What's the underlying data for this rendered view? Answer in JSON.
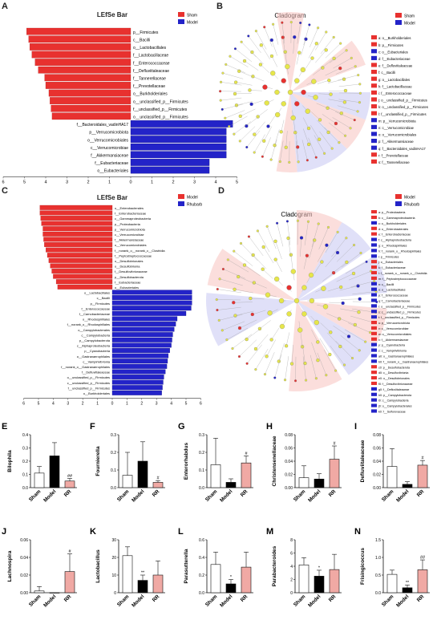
{
  "panels": {
    "A": {
      "letter": "A",
      "title": "LEfSe Bar",
      "legend": [
        {
          "label": "Sham",
          "color": "#e8312f"
        },
        {
          "label": "Model",
          "color": "#2323c8"
        }
      ],
      "red_bars": [
        {
          "label": "p__Firmicutes",
          "value": 4.9
        },
        {
          "label": "c__Bacilli",
          "value": 4.8
        },
        {
          "label": "o__Lactobacillales",
          "value": 4.75
        },
        {
          "label": "f__Lactobacillaceae",
          "value": 4.65
        },
        {
          "label": "f__Enterococcaceae",
          "value": 4.5
        },
        {
          "label": "f__Defluviitaleaceae",
          "value": 4.35
        },
        {
          "label": "f__Tannerellaceae",
          "value": 4.05
        },
        {
          "label": "f__Prevotellaceae",
          "value": 4.0
        },
        {
          "label": "o__Burkholderiales",
          "value": 3.85
        },
        {
          "label": "o__unclassified_p__Firmicutes",
          "value": 3.8
        },
        {
          "label": "f__unclassified_p__Firmicutes",
          "value": 3.75
        },
        {
          "label": "o__unclassified_p__Firmicutes",
          "value": 3.7
        }
      ],
      "blue_bars": [
        {
          "label": "f__Bacteroidales_vadinHA17",
          "value": 4.8
        },
        {
          "label": "p__Verrucomicrobiota",
          "value": 4.5
        },
        {
          "label": "o__Verrucomicrobiales",
          "value": 4.5
        },
        {
          "label": "c__Verrucomicrobiae",
          "value": 4.5
        },
        {
          "label": "f__Akkermansiaceae",
          "value": 4.5
        },
        {
          "label": "f__Eubacteriaceae",
          "value": 3.7
        },
        {
          "label": "o__Eubacteriales",
          "value": 3.7
        }
      ],
      "axis_ticks": [
        "6",
        "5",
        "4",
        "3",
        "2",
        "1",
        "0",
        "1",
        "2",
        "3",
        "4",
        "5"
      ]
    },
    "B": {
      "letter": "B",
      "title": "Cladogram",
      "legend": [
        {
          "label": "Sham",
          "color": "#e8312f"
        },
        {
          "label": "Model",
          "color": "#2323c8"
        }
      ],
      "items": [
        {
          "text": "a: o__Burkholderiales",
          "color": "#e8312f"
        },
        {
          "text": "b: p__Firmicutes",
          "color": "#e8312f"
        },
        {
          "text": "c: o__Eubacteriales",
          "color": "#2323c8"
        },
        {
          "text": "d: f__Eubacteriaceae",
          "color": "#2323c8"
        },
        {
          "text": "e: f__Defluviitaleaceae",
          "color": "#e8312f"
        },
        {
          "text": "f: c__Bacilli",
          "color": "#e8312f"
        },
        {
          "text": "g: o__Lactobacillales",
          "color": "#e8312f"
        },
        {
          "text": "h: f__Lactobacillaceae",
          "color": "#e8312f"
        },
        {
          "text": "i: f__Enterococcaceae",
          "color": "#e8312f"
        },
        {
          "text": "j: o__unclassified_p__Firmicutes",
          "color": "#e8312f"
        },
        {
          "text": "k: o__unclassified_p__Firmicutes",
          "color": "#e8312f"
        },
        {
          "text": "l: f__unclassified_p__Firmicutes",
          "color": "#e8312f"
        },
        {
          "text": "m: p__Verrucomicrobiota",
          "color": "#2323c8"
        },
        {
          "text": "n: c__Verrucomicrobiae",
          "color": "#2323c8"
        },
        {
          "text": "o: o__Verrucomicrobiales",
          "color": "#2323c8"
        },
        {
          "text": "p: f__Akkermansiaceae",
          "color": "#2323c8"
        },
        {
          "text": "q: f__Bacteroidales_vadinHA17",
          "color": "#2323c8"
        },
        {
          "text": "r: f__Prevotellaceae",
          "color": "#e8312f"
        },
        {
          "text": "s: f__Tannerellaceae",
          "color": "#e8312f"
        }
      ]
    },
    "C": {
      "letter": "C",
      "title": "LEfSe Bar",
      "legend": [
        {
          "label": "Model",
          "color": "#e8312f"
        },
        {
          "label": "Rhubarb",
          "color": "#2323c8"
        }
      ],
      "red_bars": [
        {
          "label": "o__Enterobacterales",
          "value": 4.9
        },
        {
          "label": "f__Enterobacteriaceae",
          "value": 4.9
        },
        {
          "label": "c__Gammaproteobacteria",
          "value": 4.85
        },
        {
          "label": "p__Proteobacteria",
          "value": 4.8
        },
        {
          "label": "p__Verrucomicrobiota",
          "value": 4.7
        },
        {
          "label": "c__Verrucomicrobiae",
          "value": 4.7
        },
        {
          "label": "f__Akkermansiaceae",
          "value": 4.65
        },
        {
          "label": "o__Verrucomicrobiales",
          "value": 4.6
        },
        {
          "label": "f__norank_o__norank_c__Clostridia",
          "value": 4.5
        },
        {
          "label": "f__Peptostreptococcaceae",
          "value": 4.4
        },
        {
          "label": "o__Desulfobrionales",
          "value": 4.3
        },
        {
          "label": "o__Desulfobrionia",
          "value": 4.2
        },
        {
          "label": "f__Desulfovibrionaceae",
          "value": 4.1
        },
        {
          "label": "p__Desulfobacterota",
          "value": 4.0
        },
        {
          "label": "f__Eubacteriaceae",
          "value": 3.8
        },
        {
          "label": "o__Eubacteriales",
          "value": 3.7
        }
      ],
      "blue_bars": [
        {
          "label": "o__Lactobacillales",
          "value": 5.4
        },
        {
          "label": "c__Bacilli",
          "value": 5.4
        },
        {
          "label": "p__Firmicutes",
          "value": 5.4
        },
        {
          "label": "f__Enterococcaceae",
          "value": 5.35
        },
        {
          "label": "f__Carnobacteriaceae",
          "value": 5.0
        },
        {
          "label": "o__Rhodospirillales",
          "value": 4.4
        },
        {
          "label": "f__norank_o__Rhodospirillales",
          "value": 4.3
        },
        {
          "label": "o__Campylobacterales",
          "value": 4.2
        },
        {
          "label": "c__Campylobacteria",
          "value": 4.1
        },
        {
          "label": "p__Campylobacterota",
          "value": 4.05
        },
        {
          "label": "c__Alphaproteobacteria",
          "value": 4.0
        },
        {
          "label": "p__Cyanobacteria",
          "value": 3.9
        },
        {
          "label": "o__Gastranaerophilales",
          "value": 3.8
        },
        {
          "label": "c__Vampirivibrionia",
          "value": 3.75
        },
        {
          "label": "f__norank_o__Gastranaerophilales",
          "value": 3.7
        },
        {
          "label": "f__Defluviitaleaceae",
          "value": 3.6
        },
        {
          "label": "o__unclassified_p__Firmicutes",
          "value": 3.5
        },
        {
          "label": "c__unclassified_p__Firmicutes",
          "value": 3.45
        },
        {
          "label": "f__unclassified_p__Firmicutes",
          "value": 3.4
        },
        {
          "label": "o__Burkholderiales",
          "value": 3.35
        }
      ],
      "axis_ticks": [
        "6",
        "5",
        "4",
        "3",
        "2",
        "1",
        "0",
        "1",
        "2",
        "3",
        "4",
        "5",
        "6"
      ]
    },
    "D": {
      "letter": "D",
      "title": "Cladogram",
      "legend": [
        {
          "label": "Model",
          "color": "#e8312f"
        },
        {
          "label": "Rhubarb",
          "color": "#2323c8"
        }
      ],
      "items": [
        {
          "text": "a: p__Proteobacteria",
          "color": "#e8312f"
        },
        {
          "text": "b: c__Gammaproteobacteria",
          "color": "#e8312f"
        },
        {
          "text": "c: o__Burkholderiales",
          "color": "#2323c8"
        },
        {
          "text": "d: o__Enterobacterales",
          "color": "#e8312f"
        },
        {
          "text": "e: f__Enterobacteriaceae",
          "color": "#e8312f"
        },
        {
          "text": "f: c__Alphaproteobacteria",
          "color": "#2323c8"
        },
        {
          "text": "g: o__Rhodospirillales",
          "color": "#2323c8"
        },
        {
          "text": "h: f__norank_o__Rhodospirillales",
          "color": "#2323c8"
        },
        {
          "text": "i: p__Firmicutes",
          "color": "#2323c8"
        },
        {
          "text": "j: o__Eubacteriales",
          "color": "#e8312f"
        },
        {
          "text": "k: f__Eubacteriaceae",
          "color": "#e8312f"
        },
        {
          "text": "l: f__norank_o__norank_c__Clostridia",
          "color": "#e8312f"
        },
        {
          "text": "m: f__Peptostreptococcaceae",
          "color": "#e8312f"
        },
        {
          "text": "n: c__Bacilli",
          "color": "#2323c8"
        },
        {
          "text": "o: o__Lactobacillales",
          "color": "#2323c8"
        },
        {
          "text": "p: f__Enterococcaceae",
          "color": "#2323c8"
        },
        {
          "text": "q: f__Carnobacteriaceae",
          "color": "#2323c8"
        },
        {
          "text": "r: o__unclassified_p__Firmicutes",
          "color": "#2323c8"
        },
        {
          "text": "s: c__unclassified_p__Firmicutes",
          "color": "#2323c8"
        },
        {
          "text": "t: f__unclassified_p__Firmicutes",
          "color": "#2323c8"
        },
        {
          "text": "u: p__Verrucomicrobiota",
          "color": "#e8312f"
        },
        {
          "text": "v: c__Verrucomicrobiae",
          "color": "#e8312f"
        },
        {
          "text": "w: o__Verrucomicrobiales",
          "color": "#e8312f"
        },
        {
          "text": "x: f__Akkermansiaceae",
          "color": "#e8312f"
        },
        {
          "text": "y: p__Cyanobacteria",
          "color": "#2323c8"
        },
        {
          "text": "z: c__Vampirivibrionia",
          "color": "#2323c8"
        },
        {
          "text": "a0: o__Gastranaerophilales",
          "color": "#2323c8"
        },
        {
          "text": "b0: f__norank_o__Gastranaerophilales",
          "color": "#2323c8"
        },
        {
          "text": "c0: p__Desulfobacterota",
          "color": "#e8312f"
        },
        {
          "text": "d0: c__Desulfovibrionia",
          "color": "#e8312f"
        },
        {
          "text": "e0: o__Desulfobrionales",
          "color": "#e8312f"
        },
        {
          "text": "f0: f__Desulfovibrionaceae",
          "color": "#e8312f"
        },
        {
          "text": "g0: f__Defluviitaleaceae",
          "color": "#2323c8"
        },
        {
          "text": "h0: p__Campylobacterota",
          "color": "#2323c8"
        },
        {
          "text": "i0: c__Campylobacteria",
          "color": "#2323c8"
        },
        {
          "text": "j0: o__Campylobacterales",
          "color": "#2323c8"
        },
        {
          "text": "k0: f__Sulfurovaceae",
          "color": "#2323c8"
        }
      ]
    }
  },
  "bar_panels": [
    {
      "letter": "E",
      "ylabel": "Bilophila",
      "yticks": [
        "0.0",
        "0.1",
        "0.2",
        "0.3",
        "0.4"
      ],
      "ymax": 0.4,
      "values": [
        0.11,
        0.24,
        0.05
      ],
      "errors": [
        0.05,
        0.1,
        0.02
      ],
      "sig": [
        "",
        "",
        "##"
      ]
    },
    {
      "letter": "F",
      "ylabel": "Fournierella",
      "yticks": [
        "0.0",
        "0.1",
        "0.2",
        "0.3"
      ],
      "ymax": 0.3,
      "values": [
        0.07,
        0.15,
        0.03
      ],
      "errors": [
        0.13,
        0.11,
        0.01
      ],
      "sig": [
        "",
        "",
        "#"
      ]
    },
    {
      "letter": "G",
      "ylabel": "Enterorhabdus",
      "yticks": [
        "0.0",
        "0.1",
        "0.2",
        "0.3"
      ],
      "ymax": 0.3,
      "values": [
        0.13,
        0.03,
        0.14
      ],
      "errors": [
        0.15,
        0.02,
        0.04
      ],
      "sig": [
        "",
        "",
        "#"
      ]
    },
    {
      "letter": "H",
      "ylabel": "Christensenellaceae",
      "yticks": [
        "0.00",
        "0.02",
        "0.04",
        "0.06",
        "0.08"
      ],
      "ymax": 0.08,
      "values": [
        0.015,
        0.013,
        0.043
      ],
      "errors": [
        0.018,
        0.008,
        0.02
      ],
      "sig": [
        "",
        "",
        "#"
      ]
    },
    {
      "letter": "I",
      "ylabel": "Defluviitaleaceae",
      "yticks": [
        "0.00",
        "0.02",
        "0.04",
        "0.06",
        "0.08"
      ],
      "ymax": 0.08,
      "values": [
        0.032,
        0.005,
        0.034
      ],
      "errors": [
        0.027,
        0.004,
        0.007
      ],
      "sig": [
        "",
        "",
        "#"
      ]
    },
    {
      "letter": "J",
      "ylabel": "Lachnospira",
      "yticks": [
        "0.00",
        "0.02",
        "0.04",
        "0.06"
      ],
      "ymax": 0.06,
      "values": [
        0.002,
        0.0,
        0.024
      ],
      "errors": [
        0.005,
        0.0,
        0.02
      ],
      "sig": [
        "",
        "",
        "#"
      ]
    },
    {
      "letter": "K",
      "ylabel": "Lactobacillus",
      "yticks": [
        "0",
        "10",
        "20",
        "30"
      ],
      "ymax": 30,
      "values": [
        21,
        7,
        10
      ],
      "errors": [
        5,
        3,
        8
      ],
      "sig": [
        "",
        "**",
        ""
      ]
    },
    {
      "letter": "L",
      "ylabel": "Parasutterella",
      "yticks": [
        "0.0",
        "0.2",
        "0.4",
        "0.6"
      ],
      "ymax": 0.6,
      "values": [
        0.32,
        0.1,
        0.29
      ],
      "errors": [
        0.14,
        0.05,
        0.17
      ],
      "sig": [
        "",
        "*",
        ""
      ]
    },
    {
      "letter": "M",
      "ylabel": "Parabacteroides",
      "yticks": [
        "0",
        "2",
        "4",
        "6",
        "8"
      ],
      "ymax": 8,
      "values": [
        4.2,
        2.5,
        3.5
      ],
      "errors": [
        1.1,
        0.9,
        2.3
      ],
      "sig": [
        "",
        "*",
        ""
      ]
    },
    {
      "letter": "N",
      "ylabel": "Frisingicoccus",
      "yticks": [
        "0.0",
        "0.5",
        "1.0",
        "1.5"
      ],
      "ymax": 1.5,
      "values": [
        0.52,
        0.14,
        0.65
      ],
      "errors": [
        0.12,
        0.08,
        0.28
      ],
      "sig": [
        "",
        "**",
        "##"
      ]
    }
  ],
  "group_labels": [
    "Sham",
    "Model",
    "RR"
  ],
  "colors": {
    "red": "#e8312f",
    "blue": "#2323c8",
    "sham": "#ffffff",
    "model": "#000000",
    "rr": "#f0a9a4"
  }
}
